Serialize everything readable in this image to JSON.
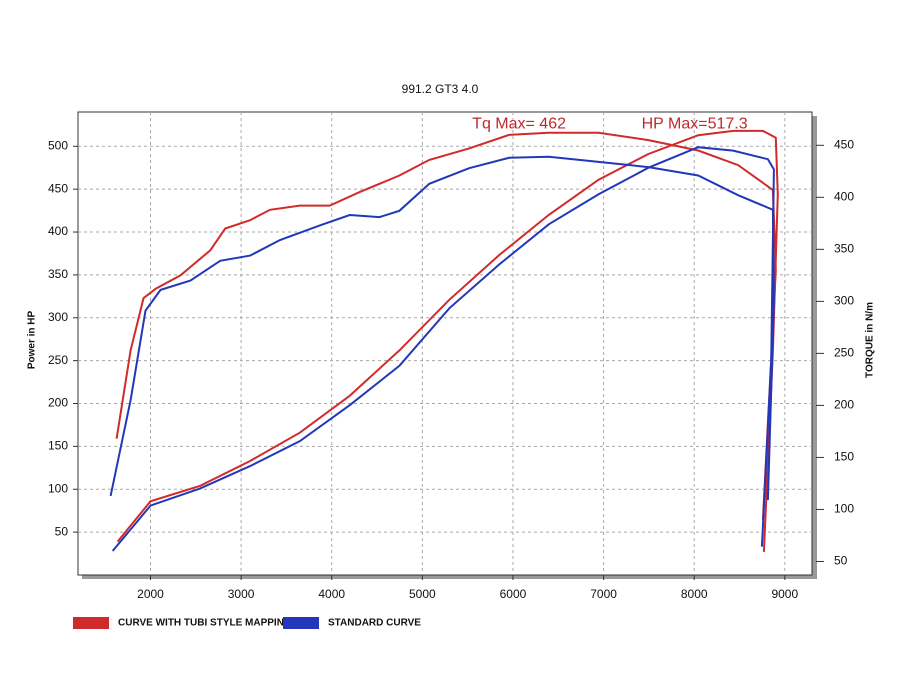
{
  "chart_data": {
    "type": "line",
    "title": "991.2 GT3 4.0",
    "y_label": "Power in HP",
    "y2_label": "TORQUE in N/m",
    "xlim": [
      1200,
      9300
    ],
    "xticks": [
      2000,
      3000,
      4000,
      5000,
      6000,
      7000,
      8000,
      9000
    ],
    "ylim": [
      0,
      540
    ],
    "yticks": [
      50,
      100,
      150,
      200,
      250,
      300,
      350,
      400,
      450,
      500
    ],
    "y2lim": [
      37,
      482
    ],
    "y2ticks": [
      50,
      100,
      150,
      200,
      250,
      300,
      350,
      400,
      450
    ],
    "grid": true,
    "legend": "bottom-left",
    "annotations": [
      {
        "text": "Tq Max= 462",
        "x": 5550,
        "y2": 470
      },
      {
        "text": "HP Max=517.3",
        "x": 7420,
        "y2": 470
      }
    ],
    "series": [
      {
        "name": "CURVE WITH TUBI STYLE MAPPING",
        "color": "#d12a2a",
        "power": {
          "x": [
            1637,
            2000,
            2549,
            3099,
            3648,
            4198,
            4747,
            5297,
            5846,
            6396,
            6945,
            7495,
            8044,
            8429,
            8758,
            8901,
            8923,
            8868,
            8769
          ],
          "values": [
            39,
            86,
            104,
            133,
            166,
            209,
            262,
            321,
            373,
            420,
            461,
            491,
            513,
            518,
            518,
            510,
            444,
            262,
            27
          ]
        },
        "torque": {
          "x": [
            1626,
            1780,
            1923,
            2055,
            2330,
            2659,
            2824,
            3099,
            3319,
            3648,
            3978,
            4308,
            4747,
            5077,
            5516,
            5956,
            6396,
            6945,
            7495,
            8044,
            8484,
            8868,
            8900,
            8758
          ],
          "values": [
            168,
            253,
            303,
            312,
            325,
            349,
            370,
            378,
            388,
            392,
            392,
            405,
            421,
            436,
            447,
            460,
            462,
            462,
            455,
            445,
            431,
            407,
            330,
            90
          ]
        }
      },
      {
        "name": "STANDARD CURVE",
        "color": "#2338b8",
        "power": {
          "x": [
            1582,
            2000,
            2549,
            3099,
            3648,
            4198,
            4747,
            5297,
            5846,
            6396,
            6945,
            7495,
            8044,
            8429,
            8813,
            8879,
            8850,
            8747
          ],
          "values": [
            28,
            81,
            101,
            127,
            156,
            198,
            244,
            311,
            362,
            409,
            444,
            475,
            499,
            495,
            485,
            473,
            250,
            33
          ]
        },
        "torque": {
          "x": [
            1560,
            1780,
            1945,
            2110,
            2440,
            2769,
            3099,
            3429,
            3868,
            4198,
            4527,
            4747,
            5077,
            5516,
            5956,
            6396,
            6945,
            7495,
            8044,
            8484,
            8868,
            8880,
            8813
          ],
          "values": [
            113,
            205,
            291,
            311,
            320,
            339,
            344,
            359,
            373,
            383,
            381,
            387,
            413,
            428,
            438,
            439,
            434,
            429,
            421,
            402,
            388,
            300,
            109
          ]
        }
      }
    ]
  }
}
